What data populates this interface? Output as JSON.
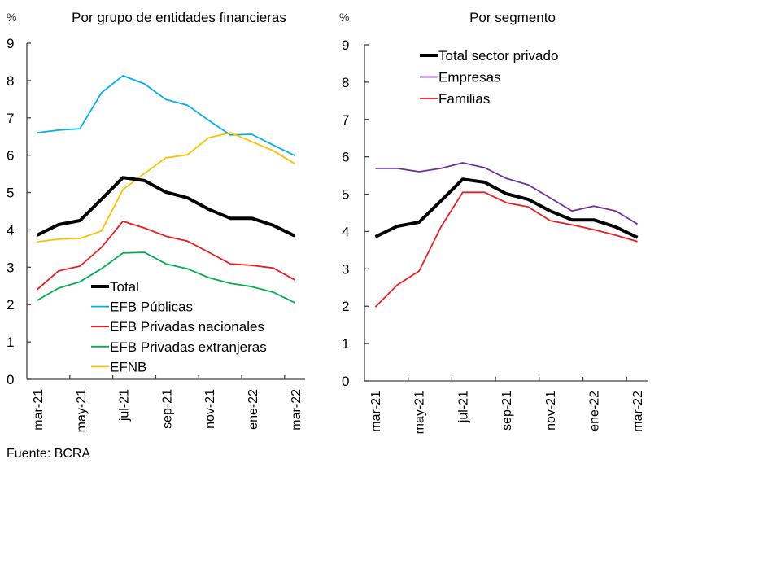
{
  "source_note": "Fuente: BCRA",
  "colors": {
    "total": "#000000",
    "efb_publicas": "#00B0F0",
    "efb_privadas_nacionales": "#ED1C24",
    "efb_privadas_extranjeras": "#00B050",
    "efnb": "#FFC000",
    "empresas": "#7030A0",
    "familias": "#ED1C24"
  },
  "chart_data": [
    {
      "type": "line",
      "title": "Por grupo de entidades financieras",
      "ylabel": "%",
      "xlabel": "",
      "ylim": [
        0,
        9
      ],
      "yticks": [
        "0",
        "1",
        "2",
        "3",
        "4",
        "5",
        "6",
        "7",
        "8",
        "9"
      ],
      "x": [
        "mar-21",
        "abr-21",
        "may-21",
        "jun-21",
        "jul-21",
        "ago-21",
        "sep-21",
        "oct-21",
        "nov-21",
        "dic-21",
        "ene-22",
        "feb-22",
        "mar-22"
      ],
      "xtick_labels": [
        "mar-21",
        "may-21",
        "jul-21",
        "sep-21",
        "nov-21",
        "ene-22",
        "mar-22"
      ],
      "grid": false,
      "legend_position": "bottom-center",
      "series": [
        {
          "name": "Total",
          "color_key": "total",
          "weight": "bold",
          "values": [
            3.86,
            4.14,
            4.25,
            4.82,
            5.4,
            5.32,
            5.01,
            4.86,
            4.55,
            4.31,
            4.31,
            4.12,
            3.84
          ]
        },
        {
          "name": "EFB Públicas",
          "color_key": "efb_publicas",
          "weight": "normal",
          "values": [
            6.6,
            6.67,
            6.71,
            7.67,
            8.13,
            7.91,
            7.49,
            7.34,
            6.93,
            6.54,
            6.56,
            6.27,
            5.99
          ]
        },
        {
          "name": "EFB Privadas nacionales",
          "color_key": "efb_privadas_nacionales",
          "weight": "normal",
          "values": [
            2.4,
            2.9,
            3.03,
            3.53,
            4.23,
            4.05,
            3.83,
            3.7,
            3.4,
            3.09,
            3.05,
            2.98,
            2.66
          ]
        },
        {
          "name": "EFB Privadas extranjeras",
          "color_key": "efb_privadas_extranjeras",
          "weight": "normal",
          "values": [
            2.11,
            2.44,
            2.61,
            2.96,
            3.38,
            3.4,
            3.09,
            2.96,
            2.72,
            2.57,
            2.48,
            2.33,
            2.05
          ]
        },
        {
          "name": "EFNB",
          "color_key": "efnb",
          "weight": "normal",
          "values": [
            3.68,
            3.75,
            3.77,
            3.97,
            5.08,
            5.51,
            5.93,
            6.01,
            6.47,
            6.6,
            6.36,
            6.12,
            5.77
          ]
        }
      ]
    },
    {
      "type": "line",
      "title": "Por segmento",
      "ylabel": "%",
      "xlabel": "",
      "ylim": [
        0,
        9
      ],
      "yticks": [
        "0",
        "1",
        "2",
        "3",
        "4",
        "5",
        "6",
        "7",
        "8",
        "9"
      ],
      "x": [
        "mar-21",
        "abr-21",
        "may-21",
        "jun-21",
        "jul-21",
        "ago-21",
        "sep-21",
        "oct-21",
        "nov-21",
        "dic-21",
        "ene-22",
        "feb-22",
        "mar-22"
      ],
      "xtick_labels": [
        "mar-21",
        "may-21",
        "jul-21",
        "sep-21",
        "nov-21",
        "ene-22",
        "mar-22"
      ],
      "grid": false,
      "legend_position": "top-center",
      "series": [
        {
          "name": "Total sector privado",
          "color_key": "total",
          "weight": "bold",
          "values": [
            3.86,
            4.14,
            4.25,
            4.82,
            5.4,
            5.32,
            5.01,
            4.86,
            4.55,
            4.31,
            4.31,
            4.12,
            3.84
          ]
        },
        {
          "name": "Empresas",
          "color_key": "empresas",
          "weight": "normal",
          "values": [
            5.69,
            5.69,
            5.6,
            5.69,
            5.84,
            5.71,
            5.42,
            5.25,
            4.9,
            4.55,
            4.68,
            4.55,
            4.2
          ]
        },
        {
          "name": "Familias",
          "color_key": "familias",
          "weight": "normal",
          "values": [
            1.98,
            2.57,
            2.94,
            4.12,
            5.05,
            5.05,
            4.77,
            4.66,
            4.29,
            4.18,
            4.05,
            3.9,
            3.73
          ]
        }
      ]
    }
  ]
}
